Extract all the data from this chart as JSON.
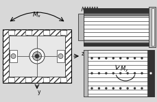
{
  "bg_color": "#d8d8d8",
  "white": "#ffffff",
  "black": "#000000",
  "dark_gray": "#333333",
  "mid_gray": "#777777",
  "light_gray": "#bbbbbb",
  "very_light_gray": "#e8e8e8",
  "fig_bg": "#d0d0d0"
}
